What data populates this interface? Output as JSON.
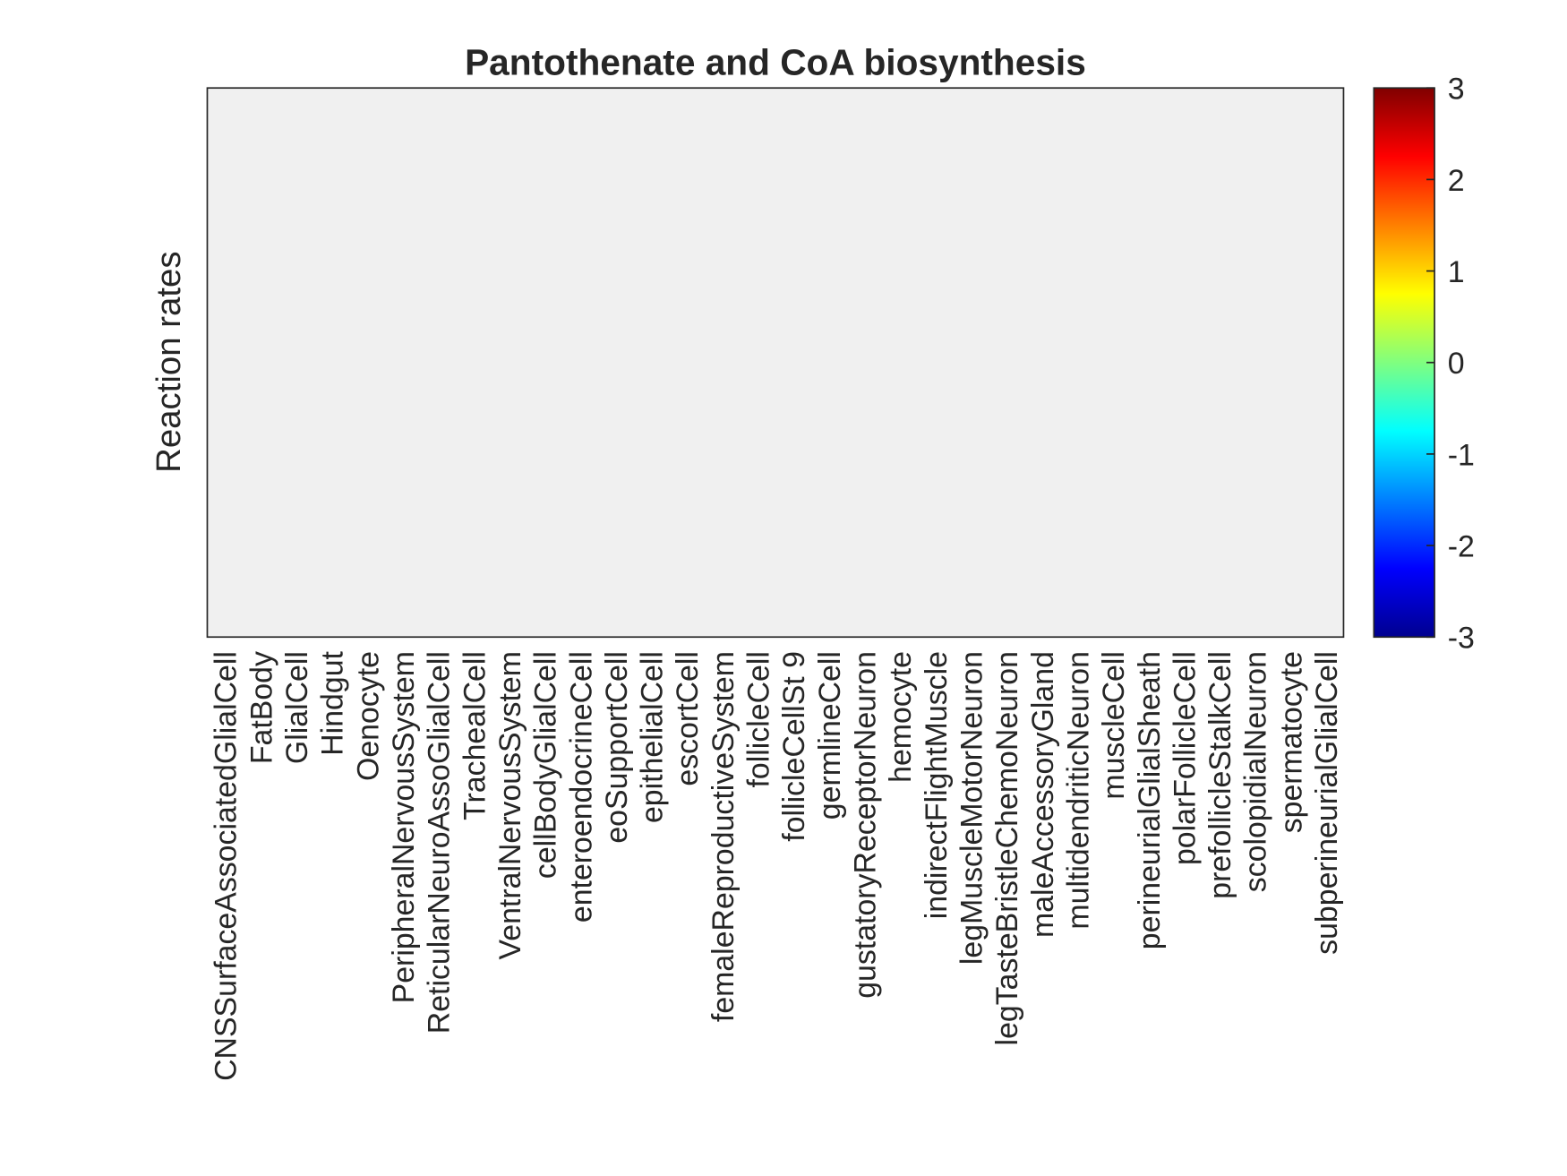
{
  "chart_data": {
    "type": "heatmap",
    "title": "Pantothenate and CoA biosynthesis",
    "y_label": "Reaction rates",
    "categories": [
      "CNSSurfaceAssociatedGlialCell",
      "FatBody",
      "GlialCell",
      "Hindgut",
      "Oenocyte",
      "PeripheralNervousSystem",
      "ReticularNeuroAssoGlialCell",
      "TrachealCell",
      "VentralNervousSystem",
      "cellBodyGlialCell",
      "enteroendocrineCell",
      "eoSupportCell",
      "epithelialCell",
      "escortCell",
      "femaleReproductiveSystem",
      "follicleCell",
      "follicleCellSt 9",
      "germlineCell",
      "gustatoryReceptorNeuron",
      "hemocyte",
      "indirectFlightMuscle",
      "legMuscleMotorNeuron",
      "legTasteBristleChemoNeuron",
      "maleAccessoryGland",
      "multidendriticNeuron",
      "muscleCell",
      "perineurialGlialSheath",
      "polarFollicleCell",
      "prefollicleStalkCell",
      "scolopidialNeuron",
      "spermatocyte",
      "subperineurialGlialCell"
    ],
    "colormap": "jet",
    "clim": [
      -3,
      3
    ],
    "cticks": [
      -3,
      -2,
      -1,
      0,
      1,
      2,
      3
    ]
  }
}
